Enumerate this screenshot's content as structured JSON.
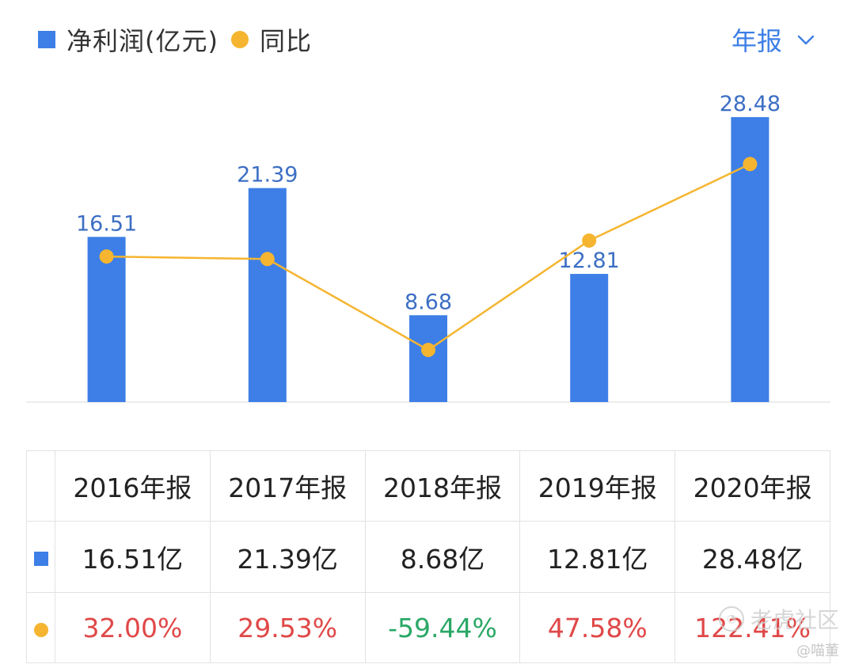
{
  "legend": {
    "bar_label": "净利润(亿元)",
    "line_label": "同比"
  },
  "period_selector": {
    "label": "年报",
    "icon": "chevron-down-icon"
  },
  "colors": {
    "bar": "#3d7fe6",
    "line": "#f5b530",
    "positive": "#e04848",
    "negative": "#2aa866",
    "accent": "#3d7fe6"
  },
  "chart_data": {
    "type": "bar",
    "categories": [
      "2016年报",
      "2017年报",
      "2018年报",
      "2019年报",
      "2020年报"
    ],
    "series": [
      {
        "name": "净利润(亿元)",
        "type": "bar",
        "values": [
          16.51,
          21.39,
          8.68,
          12.81,
          28.48
        ]
      },
      {
        "name": "同比",
        "type": "line",
        "values": [
          32.0,
          29.53,
          -59.44,
          47.58,
          122.41
        ]
      }
    ],
    "data_labels": [
      "16.51",
      "21.39",
      "8.68",
      "12.81",
      "28.48"
    ]
  },
  "table": {
    "headers": [
      "2016年报",
      "2017年报",
      "2018年报",
      "2019年报",
      "2020年报"
    ],
    "profit_row": [
      "16.51亿",
      "21.39亿",
      "8.68亿",
      "12.81亿",
      "28.48亿"
    ],
    "growth_row": [
      "32.00%",
      "29.53%",
      "-59.44%",
      "47.58%",
      "122.41%"
    ]
  },
  "watermark": {
    "text": "老虎社区",
    "user": "@喵董"
  }
}
